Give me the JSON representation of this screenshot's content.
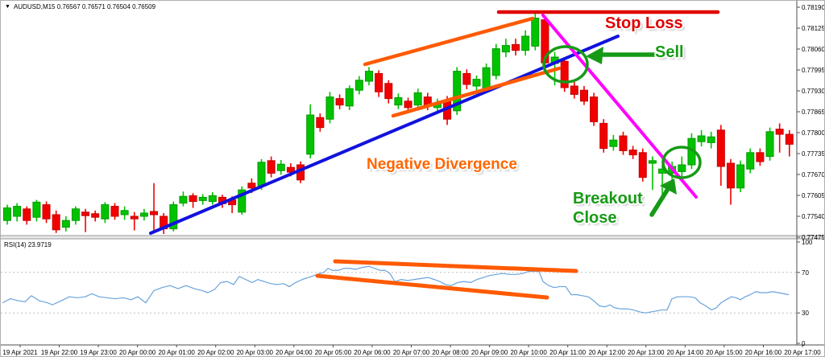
{
  "window": {
    "title": "AUDUSD,M15  0.76567 0.76571 0.76504 0.76509",
    "dropdown_icon": "chevron-down-icon"
  },
  "colors": {
    "bull": "#00c300",
    "bull_stroke": "#009a00",
    "bear": "#f20000",
    "bear_stroke": "#c40000",
    "trendline": "#1212dd",
    "breakdown": "#ff00ff",
    "channel": "#ff5a00",
    "stoploss": "#e00000",
    "green_annot": "#169a16",
    "orange_text": "#ff6600",
    "rsi_line": "#69a3dc",
    "level": "#bfbfbf",
    "axis": "#4d4d4d",
    "separator_fill": "#e8e8e8",
    "separator_edge": "#9a9a9a"
  },
  "annotations": {
    "stop_loss": {
      "label": "Stop Loss",
      "line": [
        618,
        14,
        890,
        14
      ]
    },
    "sell": {
      "label": "Sell",
      "arrow": [
        812,
        67,
        744,
        67
      ],
      "arrow_head": [
        [
          726,
          69
        ],
        [
          748,
          57
        ],
        [
          746,
          79
        ]
      ],
      "circle": [
        701,
        79,
        27,
        22
      ]
    },
    "breakout": {
      "label_line1": "Breakout",
      "label_line2": "Close",
      "arrow": [
        808,
        266,
        828,
        234
      ],
      "arrow_head": [
        [
          836,
          221
        ],
        [
          839,
          241
        ],
        [
          818,
          230
        ]
      ],
      "circle": [
        845,
        201,
        23,
        19
      ]
    },
    "negative_divergence": {
      "label": "Negative Divergence"
    },
    "trendline": {
      "points": [
        186,
        289,
        766,
        44
      ]
    },
    "channel_upper": {
      "points": [
        452,
        79,
        660,
        22
      ]
    },
    "channel_lower": {
      "points": [
        487,
        143,
        693,
        84
      ]
    },
    "breakdown_line": {
      "points": [
        673,
        18,
        863,
        244
      ]
    },
    "rsi_divergence_upper": {
      "points": [
        415,
        324,
        714,
        336
      ]
    },
    "rsi_divergence_lower": {
      "points": [
        393,
        342,
        678,
        369
      ]
    }
  },
  "chart_data": [
    {
      "id": "price",
      "type": "candlestick",
      "title": "AUDUSD,M15  0.76567 0.76571 0.76504 0.76509",
      "symbol": "AUDUSD",
      "timeframe": "M15",
      "ylim": [
        0.77475,
        0.7819
      ],
      "y_tick_labels": [
        "0.78190",
        "0.78125",
        "0.78060",
        "0.77995",
        "0.77930",
        "0.77865",
        "0.77800",
        "0.77735",
        "0.77670",
        "0.77605",
        "0.77540",
        "0.77475"
      ],
      "x_tick_labels": [
        "19 Apr 2021",
        "19 Apr 22:00",
        "19 Apr 23:00",
        "20 Apr 00:00",
        "20 Apr 01:00",
        "20 Apr 02:00",
        "20 Apr 03:00",
        "20 Apr 04:00",
        "20 Apr 05:00",
        "20 Apr 06:00",
        "20 Apr 07:00",
        "20 Apr 08:00",
        "20 Apr 09:00",
        "20 Apr 10:00",
        "20 Apr 11:00",
        "20 Apr 12:00",
        "20 Apr 13:00",
        "20 Apr 14:00",
        "20 Apr 15:00",
        "20 Apr 16:00",
        "20 Apr 17:00"
      ],
      "grid": false,
      "candles_ohlc": [
        [
          0.77527,
          0.77576,
          0.77514,
          0.77566
        ],
        [
          0.7754,
          0.77581,
          0.77524,
          0.77571
        ],
        [
          0.77563,
          0.77571,
          0.77514,
          0.77527
        ],
        [
          0.77537,
          0.77591,
          0.77524,
          0.77584
        ],
        [
          0.77576,
          0.77586,
          0.77519,
          0.77532
        ],
        [
          0.77545,
          0.77558,
          0.77488,
          0.77498
        ],
        [
          0.77506,
          0.7754,
          0.77493,
          0.77527
        ],
        [
          0.77527,
          0.77571,
          0.77514,
          0.77563
        ],
        [
          0.77553,
          0.77563,
          0.77491,
          0.77542
        ],
        [
          0.77548,
          0.77558,
          0.77524,
          0.77537
        ],
        [
          0.77532,
          0.77584,
          0.77519,
          0.77576
        ],
        [
          0.77571,
          0.77581,
          0.77529,
          0.7754
        ],
        [
          0.77545,
          0.77571,
          0.77529,
          0.77558
        ],
        [
          0.7754,
          0.77553,
          0.77496,
          0.77532
        ],
        [
          0.7754,
          0.77563,
          0.77527,
          0.7755
        ],
        [
          0.77555,
          0.77643,
          0.77488,
          0.77545
        ],
        [
          0.7754,
          0.7755,
          0.77485,
          0.77501
        ],
        [
          0.77501,
          0.77586,
          0.77493,
          0.77576
        ],
        [
          0.77581,
          0.77617,
          0.77571,
          0.77602
        ],
        [
          0.77604,
          0.77612,
          0.77566,
          0.77586
        ],
        [
          0.77589,
          0.77609,
          0.77576,
          0.77599
        ],
        [
          0.77586,
          0.77615,
          0.77576,
          0.77604
        ],
        [
          0.77599,
          0.77607,
          0.77566,
          0.77579
        ],
        [
          0.77591,
          0.77602,
          0.7755,
          0.77576
        ],
        [
          0.77553,
          0.77633,
          0.77545,
          0.77622
        ],
        [
          0.77643,
          0.77658,
          0.77612,
          0.77628
        ],
        [
          0.77635,
          0.77718,
          0.77622,
          0.77708
        ],
        [
          0.77713,
          0.77726,
          0.77661,
          0.77674
        ],
        [
          0.77682,
          0.77715,
          0.77669,
          0.77702
        ],
        [
          0.77692,
          0.77705,
          0.77664,
          0.77677
        ],
        [
          0.777,
          0.7771,
          0.77643,
          0.77653
        ],
        [
          0.77733,
          0.77888,
          0.7772,
          0.77855
        ],
        [
          0.77847,
          0.7786,
          0.77803,
          0.77816
        ],
        [
          0.77842,
          0.77927,
          0.77829,
          0.77911
        ],
        [
          0.77906,
          0.77919,
          0.77873,
          0.77886
        ],
        [
          0.77883,
          0.77947,
          0.7787,
          0.77937
        ],
        [
          0.77932,
          0.77976,
          0.77919,
          0.77963
        ],
        [
          0.7796,
          0.78004,
          0.77947,
          0.77991
        ],
        [
          0.77984,
          0.77994,
          0.77911,
          0.77927
        ],
        [
          0.77953,
          0.77963,
          0.77891,
          0.77906
        ],
        [
          0.77886,
          0.77922,
          0.77873,
          0.77909
        ],
        [
          0.77898,
          0.77909,
          0.7786,
          0.77878
        ],
        [
          0.77886,
          0.77937,
          0.77873,
          0.77924
        ],
        [
          0.77911,
          0.77924,
          0.7787,
          0.77886
        ],
        [
          0.77878,
          0.77906,
          0.77862,
          0.77893
        ],
        [
          0.77901,
          0.77914,
          0.77824,
          0.77842
        ],
        [
          0.77868,
          0.78004,
          0.77855,
          0.77991
        ],
        [
          0.77984,
          0.77997,
          0.77935,
          0.7795
        ],
        [
          0.77945,
          0.77978,
          0.77929,
          0.77966
        ],
        [
          0.77937,
          0.78015,
          0.77924,
          0.78002
        ],
        [
          0.77978,
          0.78076,
          0.77966,
          0.78061
        ],
        [
          0.78051,
          0.78092,
          0.78035,
          0.78071
        ],
        [
          0.78074,
          0.78092,
          0.7804,
          0.78056
        ],
        [
          0.78056,
          0.78118,
          0.7804,
          0.781
        ],
        [
          0.78069,
          0.78175,
          0.78056,
          0.78156
        ],
        [
          0.78151,
          0.78164,
          0.78004,
          0.78017
        ],
        [
          0.78015,
          0.78051,
          0.77947,
          0.78035
        ],
        [
          0.78022,
          0.78035,
          0.77927,
          0.7794
        ],
        [
          0.77945,
          0.77958,
          0.77906,
          0.77919
        ],
        [
          0.77932,
          0.77945,
          0.77886,
          0.77898
        ],
        [
          0.77911,
          0.77924,
          0.77821,
          0.77834
        ],
        [
          0.77829,
          0.77842,
          0.77738,
          0.77751
        ],
        [
          0.77757,
          0.77793,
          0.77744,
          0.77777
        ],
        [
          0.7779,
          0.77803,
          0.77731,
          0.77744
        ],
        [
          0.77746,
          0.77759,
          0.77718,
          0.77731
        ],
        [
          0.77738,
          0.77751,
          0.77648,
          0.77661
        ],
        [
          0.77705,
          0.77726,
          0.77622,
          0.77713
        ],
        [
          0.77674,
          0.777,
          0.77604,
          0.77687
        ],
        [
          0.77674,
          0.7771,
          0.77617,
          0.77695
        ],
        [
          0.77679,
          0.77726,
          0.77648,
          0.777
        ],
        [
          0.777,
          0.77798,
          0.77687,
          0.77782
        ],
        [
          0.77772,
          0.77808,
          0.77757,
          0.7779
        ],
        [
          0.77769,
          0.77803,
          0.77751,
          0.77787
        ],
        [
          0.77808,
          0.77824,
          0.77635,
          0.77695
        ],
        [
          0.77705,
          0.77718,
          0.77576,
          0.77628
        ],
        [
          0.77628,
          0.77713,
          0.77615,
          0.777
        ],
        [
          0.77687,
          0.77751,
          0.77674,
          0.77738
        ],
        [
          0.77738,
          0.77751,
          0.77697,
          0.7771
        ],
        [
          0.77726,
          0.77816,
          0.77713,
          0.77803
        ],
        [
          0.77811,
          0.77829,
          0.77738,
          0.77795
        ],
        [
          0.77795,
          0.77808,
          0.77726,
          0.77764
        ]
      ]
    },
    {
      "id": "rsi",
      "type": "line",
      "label": "RSI(14)",
      "value": "23.9719",
      "label_full": "RSI(14) 23.9719",
      "ylim": [
        0,
        100
      ],
      "y_tick_labels": [
        "100",
        "70",
        "30",
        "0"
      ],
      "y_ticks": [
        100,
        70,
        30,
        0
      ],
      "levels": [
        70,
        30
      ],
      "points": [
        [
          2,
          40
        ],
        [
          12,
          44
        ],
        [
          22,
          42
        ],
        [
          30,
          41
        ],
        [
          38,
          47
        ],
        [
          48,
          42
        ],
        [
          58,
          40
        ],
        [
          64,
          38
        ],
        [
          75,
          42
        ],
        [
          85,
          46
        ],
        [
          95,
          45
        ],
        [
          105,
          46
        ],
        [
          113,
          49
        ],
        [
          122,
          46
        ],
        [
          132,
          45
        ],
        [
          142,
          44
        ],
        [
          152,
          45
        ],
        [
          162,
          43
        ],
        [
          170,
          46
        ],
        [
          180,
          40
        ],
        [
          190,
          52
        ],
        [
          200,
          55
        ],
        [
          210,
          57
        ],
        [
          220,
          54
        ],
        [
          230,
          57
        ],
        [
          240,
          54
        ],
        [
          250,
          52
        ],
        [
          257,
          50
        ],
        [
          265,
          53
        ],
        [
          273,
          60
        ],
        [
          281,
          61
        ],
        [
          289,
          58
        ],
        [
          296,
          66
        ],
        [
          304,
          63
        ],
        [
          312,
          60
        ],
        [
          319,
          63
        ],
        [
          327,
          61
        ],
        [
          335,
          59
        ],
        [
          343,
          58
        ],
        [
          351,
          59
        ],
        [
          358,
          56
        ],
        [
          366,
          60
        ],
        [
          374,
          63
        ],
        [
          382,
          65
        ],
        [
          389,
          67
        ],
        [
          396,
          69
        ],
        [
          401,
          70
        ],
        [
          406,
          74
        ],
        [
          412,
          72
        ],
        [
          419,
          72
        ],
        [
          426,
          74
        ],
        [
          433,
          74
        ],
        [
          440,
          73
        ],
        [
          449,
          75
        ],
        [
          457,
          76
        ],
        [
          464,
          74
        ],
        [
          471,
          72
        ],
        [
          477,
          72
        ],
        [
          483,
          69
        ],
        [
          489,
          61
        ],
        [
          497,
          63
        ],
        [
          505,
          62
        ],
        [
          513,
          63
        ],
        [
          522,
          64
        ],
        [
          530,
          65
        ],
        [
          538,
          63
        ],
        [
          545,
          61
        ],
        [
          552,
          58
        ],
        [
          559,
          57
        ],
        [
          567,
          60
        ],
        [
          575,
          61
        ],
        [
          583,
          60
        ],
        [
          591,
          63
        ],
        [
          599,
          65
        ],
        [
          607,
          67
        ],
        [
          615,
          68
        ],
        [
          623,
          69
        ],
        [
          631,
          68
        ],
        [
          640,
          68
        ],
        [
          648,
          69
        ],
        [
          655,
          71
        ],
        [
          663,
          71
        ],
        [
          668,
          71
        ],
        [
          673,
          61
        ],
        [
          680,
          57
        ],
        [
          687,
          55
        ],
        [
          694,
          56
        ],
        [
          701,
          56
        ],
        [
          708,
          48
        ],
        [
          715,
          48
        ],
        [
          722,
          47
        ],
        [
          729,
          46
        ],
        [
          736,
          42
        ],
        [
          743,
          37
        ],
        [
          750,
          36
        ],
        [
          756,
          38
        ],
        [
          762,
          35
        ],
        [
          770,
          34
        ],
        [
          778,
          34
        ],
        [
          785,
          33
        ],
        [
          793,
          31
        ],
        [
          800,
          30
        ],
        [
          807,
          31
        ],
        [
          814,
          32
        ],
        [
          821,
          33
        ],
        [
          827,
          33
        ],
        [
          833,
          44
        ],
        [
          840,
          46
        ],
        [
          848,
          46
        ],
        [
          855,
          46
        ],
        [
          862,
          45
        ],
        [
          868,
          40
        ],
        [
          875,
          37
        ],
        [
          882,
          33
        ],
        [
          888,
          35
        ],
        [
          894,
          40
        ],
        [
          900,
          43
        ],
        [
          907,
          46
        ],
        [
          913,
          45
        ],
        [
          918,
          43
        ],
        [
          924,
          46
        ],
        [
          930,
          48
        ],
        [
          937,
          51
        ],
        [
          944,
          50
        ],
        [
          951,
          50
        ],
        [
          958,
          51
        ],
        [
          965,
          50
        ],
        [
          972,
          49
        ],
        [
          978,
          48
        ]
      ]
    }
  ]
}
